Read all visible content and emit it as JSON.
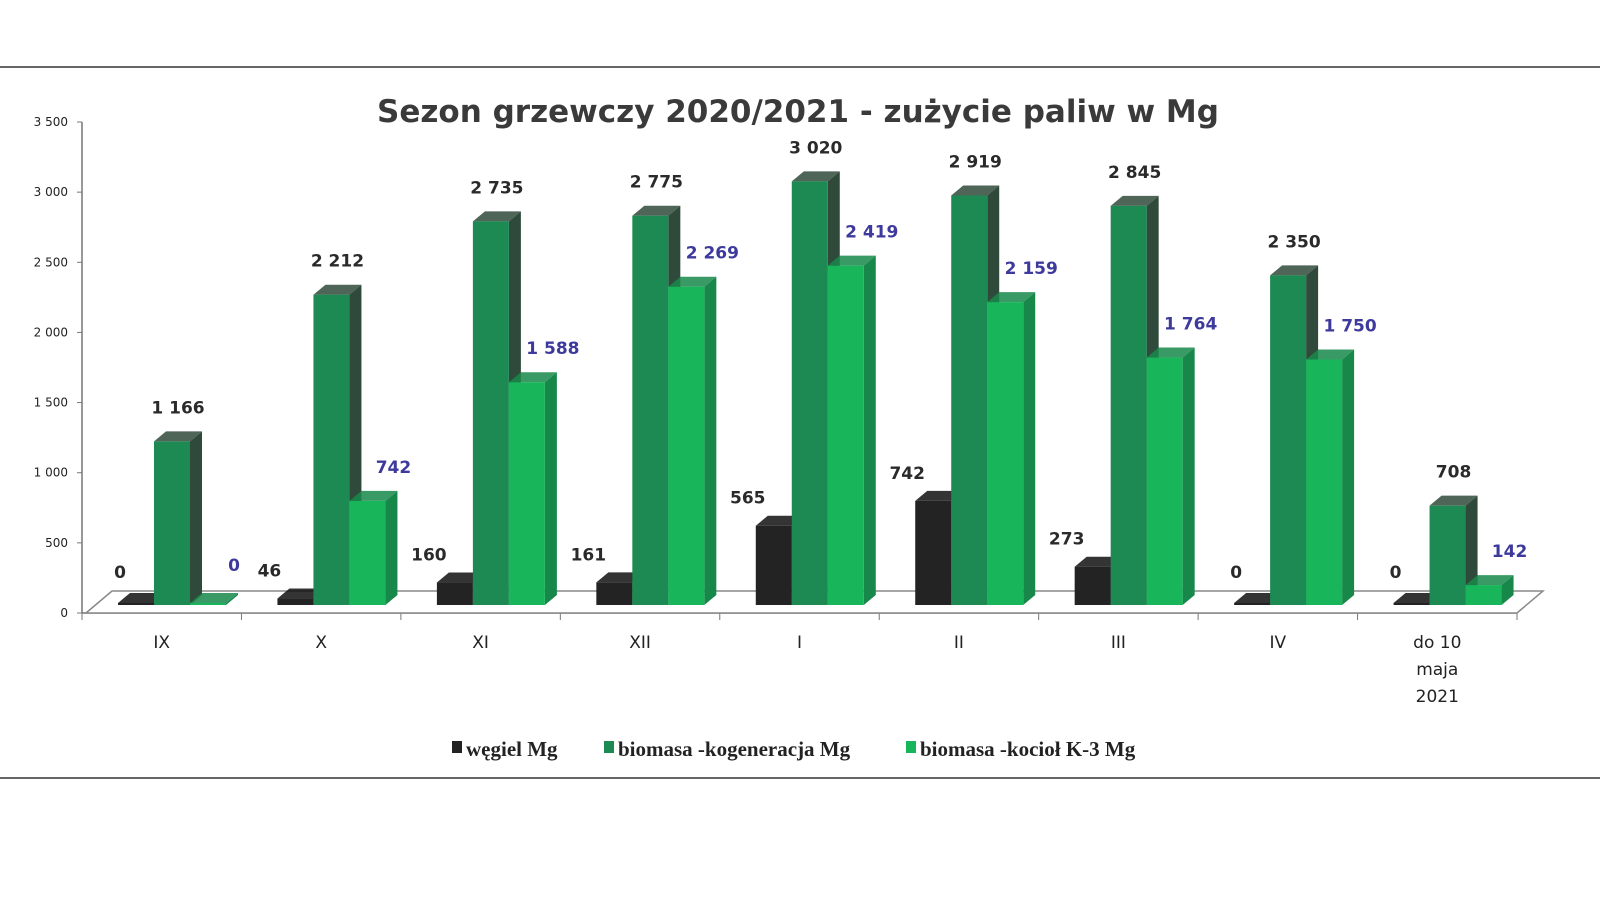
{
  "chart_data": {
    "type": "bar",
    "title": "Sezon grzewczy 2020/2021 - zużycie paliw w Mg",
    "categories": [
      "IX",
      "X",
      "XI",
      "XII",
      "I",
      "II",
      "III",
      "IV",
      "do 10 maja 2021"
    ],
    "category_lines": [
      [
        "IX"
      ],
      [
        "X"
      ],
      [
        "XI"
      ],
      [
        "XII"
      ],
      [
        "I"
      ],
      [
        "II"
      ],
      [
        "III"
      ],
      [
        "IV"
      ],
      [
        "do 10",
        "maja",
        "2021"
      ]
    ],
    "series": [
      {
        "name": "węgiel Mg",
        "color": "#232323",
        "side_color": "#111111",
        "label_color": "#2a2a2a",
        "values": [
          0,
          46,
          160,
          161,
          565,
          742,
          273,
          0,
          0
        ],
        "labels": [
          "0",
          "46",
          "160",
          "161",
          "565",
          "742",
          "273",
          "0",
          "0"
        ]
      },
      {
        "name": "biomasa -kogeneracja Mg",
        "color": "#1d8a54",
        "side_color": "#2f4a3a",
        "label_color": "#2a2a2a",
        "values": [
          1166,
          2212,
          2735,
          2775,
          3020,
          2919,
          2845,
          2350,
          708
        ],
        "labels": [
          "1 166",
          "2 212",
          "2 735",
          "2 775",
          "3 020",
          "2 919",
          "2 845",
          "2 350",
          "708"
        ]
      },
      {
        "name": "biomasa -kocioł K-3 Mg",
        "color": "#19b55a",
        "side_color": "#17884a",
        "label_color": "#3d3a9c",
        "values": [
          0,
          742,
          1588,
          2269,
          2419,
          2159,
          1764,
          1750,
          142
        ],
        "labels": [
          "0",
          "742",
          "1 588",
          "2 269",
          "2 419",
          "2 159",
          "1 764",
          "1 750",
          "142"
        ]
      }
    ],
    "ylim": [
      0,
      3500
    ],
    "yticks": [
      0,
      500,
      1000,
      1500,
      2000,
      2500,
      3000,
      3500
    ],
    "ytick_labels": [
      "0",
      "500",
      "1 000",
      "1 500",
      "2 000",
      "2 500",
      "3 000",
      "3 500"
    ],
    "xlabel": "",
    "ylabel": "",
    "grid": false,
    "legend_position": "bottom",
    "style": "3d-clustered-column"
  }
}
